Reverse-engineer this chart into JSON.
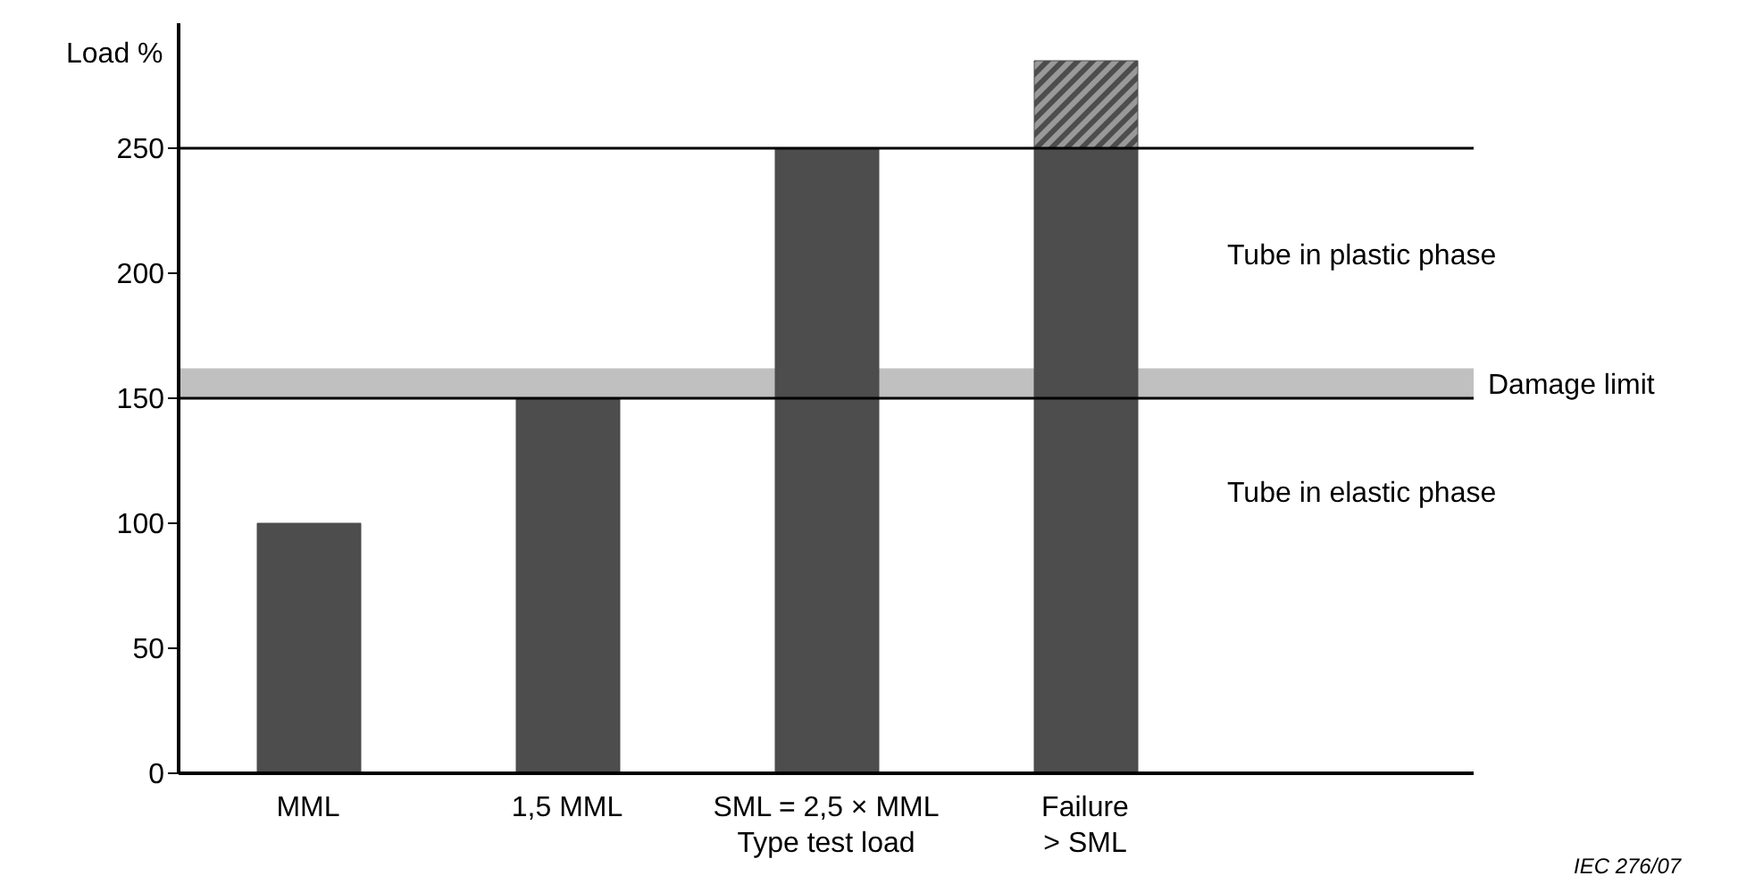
{
  "chart_data": {
    "type": "bar",
    "ylabel": "Load %",
    "categories": [
      "MML",
      "1,5 MML",
      "SML = 2,5 × MML\nType test load",
      "Failure\n> SML"
    ],
    "stacked": true,
    "series": [
      {
        "color": "#4d4d4d",
        "values": [
          100,
          150,
          250,
          250
        ]
      },
      {
        "color": "#4d4d4d",
        "values": [
          null,
          null,
          null,
          35
        ]
      }
    ],
    "ylim": [
      0,
      300
    ],
    "yticks": [
      0,
      50,
      100,
      150,
      200,
      250
    ],
    "ref_lines": [
      {
        "axis": "y",
        "value": 250,
        "color": "#000000"
      },
      {
        "axis": "y",
        "value": 150,
        "color": "#000000"
      }
    ],
    "bands": [
      {
        "axis": "y",
        "from": 150,
        "to": 162,
        "label": "Damage limit",
        "color": "#c0c0c0"
      }
    ],
    "annotations": [
      "Tube in plastic phase",
      "Tube in elastic phase",
      "IEC  276/07"
    ],
    "grid": false,
    "legend": false
  }
}
